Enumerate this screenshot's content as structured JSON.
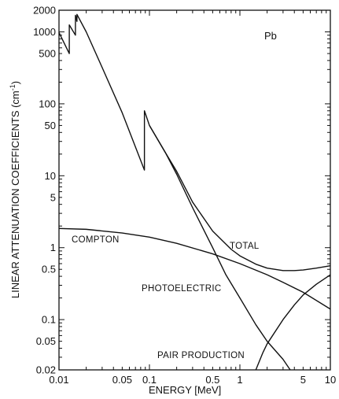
{
  "chart_data": {
    "type": "line",
    "xlabel": "ENERGY  [MeV]",
    "ylabel": "LINEAR ATTENUATION COEFFICIENTS (cm",
    "ylabel_superscript": "-1",
    "ylabel_close": ")",
    "xscale": "log",
    "yscale": "log",
    "xlim": [
      0.01,
      10
    ],
    "ylim": [
      0.02,
      2000
    ],
    "grid": false,
    "element_label": "Pb",
    "x_ticks": [
      {
        "value": 0.01,
        "label": "0.01"
      },
      {
        "value": 0.05,
        "label": "0.05"
      },
      {
        "value": 0.1,
        "label": "0.1"
      },
      {
        "value": 0.5,
        "label": "0.5"
      },
      {
        "value": 1,
        "label": "1"
      },
      {
        "value": 5,
        "label": "5"
      },
      {
        "value": 10,
        "label": "10"
      }
    ],
    "y_ticks": [
      {
        "value": 0.02,
        "label": "0.02"
      },
      {
        "value": 0.05,
        "label": "0.05"
      },
      {
        "value": 0.1,
        "label": "0.1"
      },
      {
        "value": 0.5,
        "label": "0.5"
      },
      {
        "value": 1,
        "label": "1"
      },
      {
        "value": 5,
        "label": "5"
      },
      {
        "value": 10,
        "label": "10"
      },
      {
        "value": 50,
        "label": "50"
      },
      {
        "value": 100,
        "label": "100"
      },
      {
        "value": 500,
        "label": "500"
      },
      {
        "value": 1000,
        "label": "1000"
      },
      {
        "value": 2000,
        "label": "2000"
      }
    ],
    "series": [
      {
        "name": "TOTAL",
        "points": [
          [
            0.01,
            980
          ],
          [
            0.013,
            500
          ],
          [
            0.013,
            1250
          ],
          [
            0.0152,
            900
          ],
          [
            0.0152,
            1700
          ],
          [
            0.0158,
            1400
          ],
          [
            0.0158,
            1750
          ],
          [
            0.02,
            1000
          ],
          [
            0.03,
            320
          ],
          [
            0.05,
            75
          ],
          [
            0.088,
            12
          ],
          [
            0.088,
            80
          ],
          [
            0.1,
            50
          ],
          [
            0.15,
            21
          ],
          [
            0.2,
            11.5
          ],
          [
            0.3,
            4.3
          ],
          [
            0.5,
            1.7
          ],
          [
            0.8,
            0.95
          ],
          [
            1,
            0.77
          ],
          [
            1.5,
            0.59
          ],
          [
            2,
            0.52
          ],
          [
            3,
            0.48
          ],
          [
            4,
            0.48
          ],
          [
            5,
            0.49
          ],
          [
            7,
            0.52
          ],
          [
            10,
            0.56
          ]
        ]
      },
      {
        "name": "COMPTON",
        "points": [
          [
            0.01,
            1.85
          ],
          [
            0.02,
            1.8
          ],
          [
            0.05,
            1.6
          ],
          [
            0.1,
            1.4
          ],
          [
            0.2,
            1.15
          ],
          [
            0.5,
            0.82
          ],
          [
            1,
            0.6
          ],
          [
            2,
            0.42
          ],
          [
            3,
            0.33
          ],
          [
            5,
            0.24
          ],
          [
            10,
            0.14
          ]
        ]
      },
      {
        "name": "PHOTOELECTRIC",
        "points": [
          [
            0.1,
            50
          ],
          [
            0.15,
            21
          ],
          [
            0.2,
            10.5
          ],
          [
            0.3,
            3.6
          ],
          [
            0.5,
            1.0
          ],
          [
            0.7,
            0.42
          ],
          [
            1,
            0.2
          ],
          [
            1.5,
            0.085
          ],
          [
            2,
            0.05
          ],
          [
            3,
            0.028
          ],
          [
            3.6,
            0.02
          ]
        ]
      },
      {
        "name": "PAIR PRODUCTION",
        "points": [
          [
            1.5,
            0.02
          ],
          [
            1.8,
            0.035
          ],
          [
            2,
            0.046
          ],
          [
            3,
            0.1
          ],
          [
            4,
            0.16
          ],
          [
            5,
            0.22
          ],
          [
            7,
            0.31
          ],
          [
            10,
            0.42
          ]
        ]
      }
    ]
  }
}
